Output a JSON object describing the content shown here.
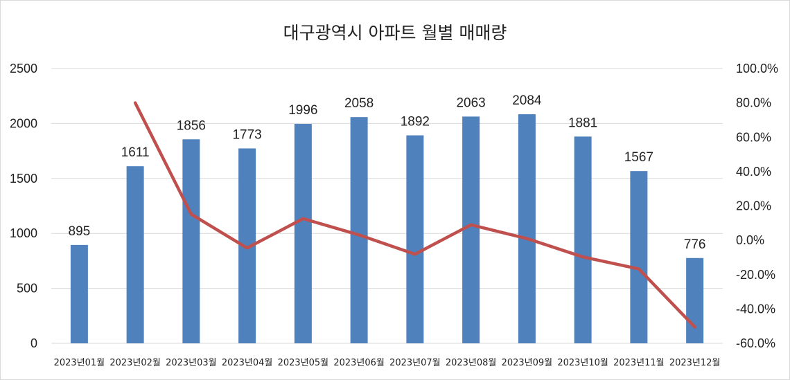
{
  "chart_data": {
    "type": "bar",
    "title": "대구광역시 아파트 월별 매매량",
    "categories": [
      "2023년01월",
      "2023년02월",
      "2023년03월",
      "2023년04월",
      "2023년05월",
      "2023년06월",
      "2023년07월",
      "2023년08월",
      "2023년09월",
      "2023년10월",
      "2023년11월",
      "2023년12월"
    ],
    "series": [
      {
        "type": "bar",
        "axis": "left",
        "color": "#4F81BD",
        "values": [
          895,
          1611,
          1856,
          1773,
          1996,
          2058,
          1892,
          2063,
          2084,
          1881,
          1567,
          776
        ],
        "data_labels": [
          "895",
          "1611",
          "1856",
          "1773",
          "1996",
          "2058",
          "1892",
          "2063",
          "2084",
          "1881",
          "1567",
          "776"
        ]
      },
      {
        "type": "line",
        "axis": "right",
        "color": "#C0504D",
        "values": [
          null,
          80.0,
          15.2,
          -4.5,
          12.6,
          3.1,
          -8.1,
          9.0,
          1.0,
          -9.7,
          -16.7,
          -50.5
        ]
      }
    ],
    "left_axis": {
      "ylim": [
        0,
        2500
      ],
      "ticks": [
        "0",
        "500",
        "1000",
        "1500",
        "2000",
        "2500"
      ]
    },
    "right_axis": {
      "ylim": [
        -60,
        100
      ],
      "ticks": [
        "-60.0%",
        "-40.0%",
        "-20.0%",
        "0.0%",
        "20.0%",
        "40.0%",
        "60.0%",
        "80.0%",
        "100.0%"
      ]
    },
    "grid": true,
    "legend": "none"
  }
}
